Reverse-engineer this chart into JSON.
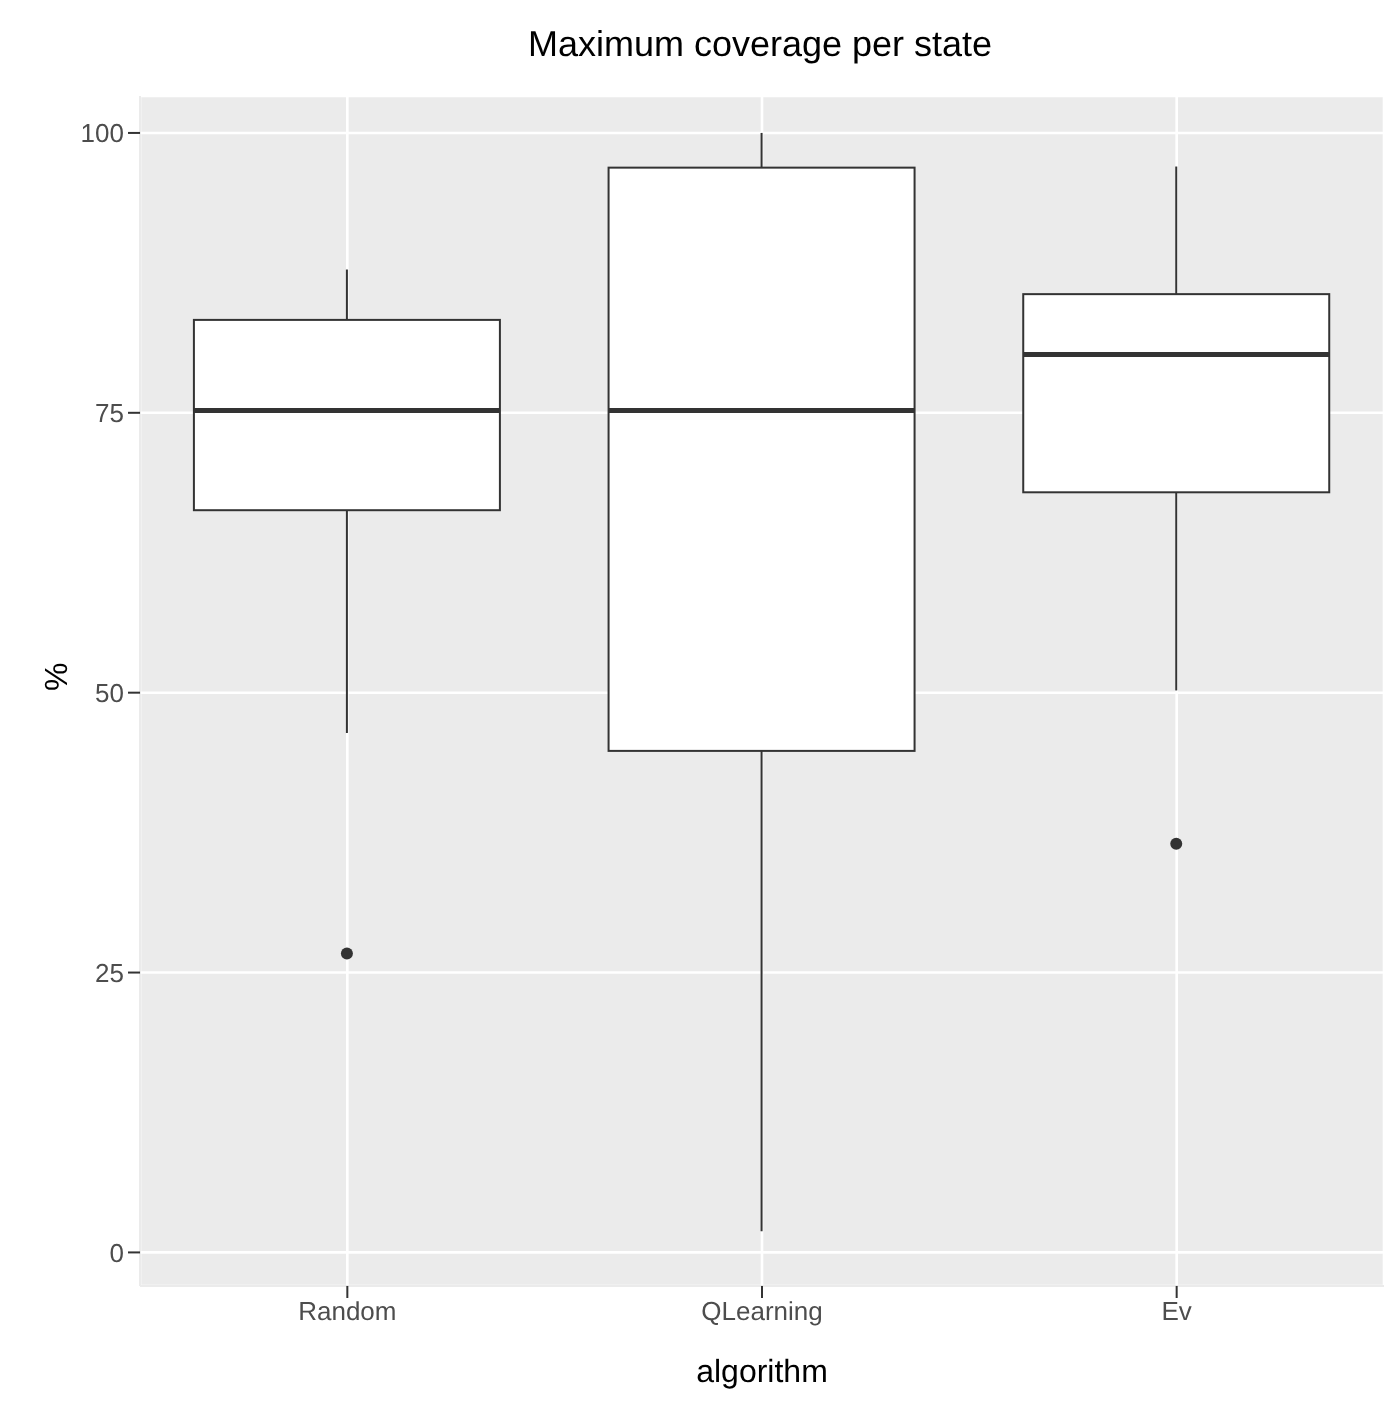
{
  "chart_data": {
    "type": "box",
    "title": "Maximum coverage per state",
    "xlabel": "algorithm",
    "ylabel": "%",
    "categories": [
      "Random",
      "QLearning",
      "Ev"
    ],
    "boxes": [
      {
        "low": 46.4,
        "q1": 66.3,
        "median": 75.2,
        "q3": 83.3,
        "high": 87.8,
        "outliers": [
          26.7
        ]
      },
      {
        "low": 1.9,
        "q1": 44.8,
        "median": 75.2,
        "q3": 96.9,
        "high": 100
      },
      {
        "low": 50.2,
        "q1": 67.9,
        "median": 80.2,
        "q3": 85.6,
        "high": 97.0,
        "outliers": [
          36.5
        ]
      }
    ],
    "ylim": [
      -3,
      103.3
    ],
    "yticks": [
      0,
      25,
      50,
      75,
      100
    ],
    "grid": true,
    "legend": false
  }
}
